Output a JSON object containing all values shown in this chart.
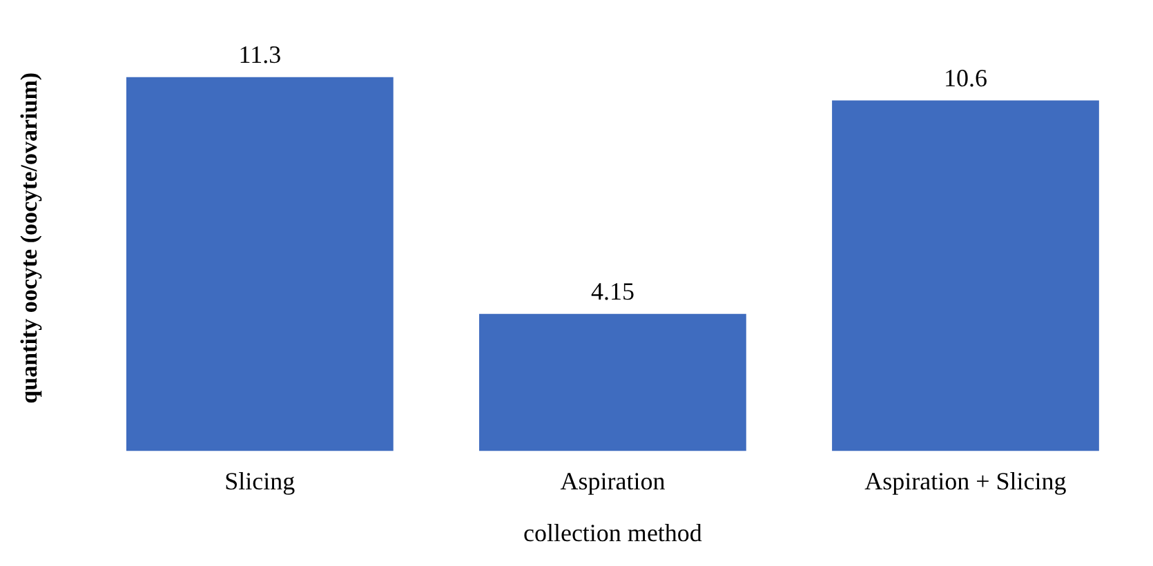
{
  "chart_data": {
    "type": "bar",
    "xlabel": "collection method",
    "ylabel": "quantity oocyte (oocyte/ovarium)",
    "categories": [
      "Slicing",
      "Aspiration",
      "Aspiration + Slicing"
    ],
    "values": [
      11.3,
      4.15,
      10.6
    ],
    "color": "#3f6cbf",
    "data_labels": true,
    "grid": false,
    "legend": false
  }
}
